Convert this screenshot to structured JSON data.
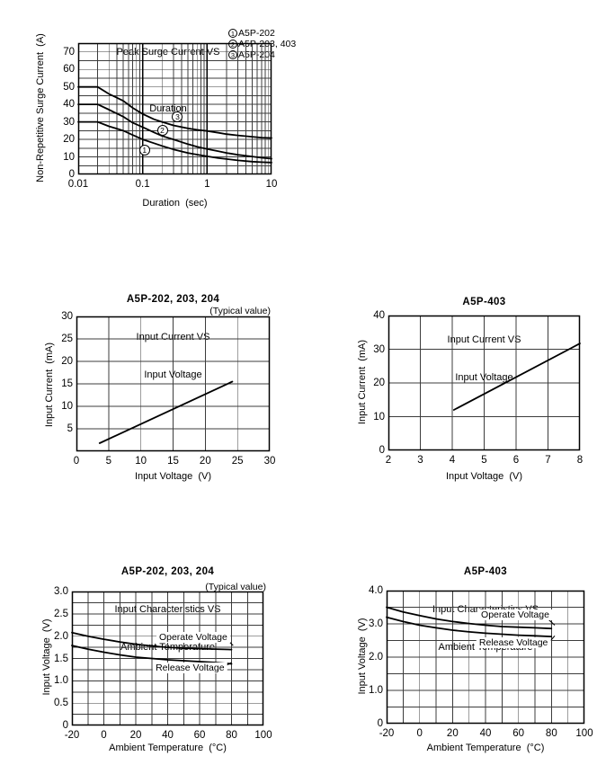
{
  "page": {
    "background": "#ffffff",
    "ink_color": "#000000"
  },
  "chart_data": [
    {
      "id": "peak-surge",
      "type": "line",
      "title": [
        "Peak Surge Current VS",
        "Duration"
      ],
      "legend": [
        {
          "num": "1",
          "label": "A5P-202"
        },
        {
          "num": "2",
          "label": "A5P-203, 403"
        },
        {
          "num": "3",
          "label": "A5P-204"
        }
      ],
      "x_axis": {
        "label": "Duration  (sec)",
        "scale": "log",
        "min": 0.01,
        "max": 10,
        "tick_values": [
          0.01,
          0.1,
          1,
          10
        ],
        "tick_labels": [
          "0.01",
          "0.1",
          "1",
          "10"
        ]
      },
      "y_axis": {
        "label": "Non-Repetitive Surge Current  (A)",
        "min": 0,
        "max": 75,
        "grid_step": 5,
        "tick_values": [
          0,
          10,
          20,
          30,
          40,
          50,
          60,
          70
        ],
        "tick_labels": [
          "0",
          "10",
          "20",
          "30",
          "40",
          "50",
          "60",
          "70"
        ]
      },
      "series": [
        {
          "name": "A5P-204",
          "marker": "3",
          "points": [
            [
              0.01,
              50
            ],
            [
              0.02,
              50
            ],
            [
              0.03,
              46
            ],
            [
              0.05,
              42
            ],
            [
              0.07,
              38
            ],
            [
              0.1,
              34.5
            ],
            [
              0.15,
              31.5
            ],
            [
              0.2,
              30
            ],
            [
              0.3,
              28
            ],
            [
              0.5,
              26.3
            ],
            [
              0.7,
              25.5
            ],
            [
              1,
              24.8
            ],
            [
              1.5,
              23.8
            ],
            [
              2,
              23
            ],
            [
              3,
              22.3
            ],
            [
              5,
              21.5
            ],
            [
              7,
              21
            ],
            [
              10,
              20.8
            ]
          ]
        },
        {
          "name": "A5P-203, 403",
          "marker": "2",
          "points": [
            [
              0.01,
              40
            ],
            [
              0.02,
              40
            ],
            [
              0.03,
              37
            ],
            [
              0.05,
              33
            ],
            [
              0.07,
              29.5
            ],
            [
              0.1,
              27
            ],
            [
              0.15,
              24
            ],
            [
              0.2,
              22
            ],
            [
              0.3,
              20
            ],
            [
              0.5,
              17.3
            ],
            [
              0.7,
              15.8
            ],
            [
              1,
              14.5
            ],
            [
              1.5,
              13.2
            ],
            [
              2,
              12.3
            ],
            [
              3,
              11.2
            ],
            [
              5,
              10.2
            ],
            [
              7,
              9.5
            ],
            [
              10,
              9
            ]
          ]
        },
        {
          "name": "A5P-202",
          "marker": "1",
          "points": [
            [
              0.01,
              30
            ],
            [
              0.02,
              30
            ],
            [
              0.03,
              27.5
            ],
            [
              0.05,
              25
            ],
            [
              0.07,
              22.5
            ],
            [
              0.1,
              20
            ],
            [
              0.15,
              17.8
            ],
            [
              0.2,
              16.3
            ],
            [
              0.3,
              14.3
            ],
            [
              0.5,
              12.3
            ],
            [
              0.7,
              11.3
            ],
            [
              1,
              10.3
            ],
            [
              1.5,
              9.3
            ],
            [
              2,
              8.8
            ],
            [
              3,
              8
            ],
            [
              5,
              7.3
            ],
            [
              7,
              7
            ],
            [
              10,
              6.8
            ]
          ]
        }
      ],
      "point_labels": [
        {
          "circled": "3",
          "x": 0.348,
          "y": 32.9
        },
        {
          "circled": "2",
          "x": 0.202,
          "y": 25.3
        },
        {
          "circled": "1",
          "x": 0.107,
          "y": 13.7
        }
      ]
    },
    {
      "id": "iv-202",
      "type": "line",
      "title": [
        "A5P-202, 203, 204",
        "Input Current VS",
        "Input Voltage"
      ],
      "note": "(Typical value)",
      "x_axis": {
        "label": "Input Voltage  (V)",
        "min": 0,
        "max": 30,
        "grid_step": 5,
        "tick_values": [
          0,
          5,
          10,
          15,
          20,
          25,
          30
        ],
        "tick_labels": [
          "0",
          "5",
          "10",
          "15",
          "20",
          "25",
          "30"
        ]
      },
      "y_axis": {
        "label": "Input Current  (mA)",
        "min": 0,
        "max": 30,
        "grid_step": 5,
        "tick_values": [
          5,
          10,
          15,
          20,
          25,
          30
        ],
        "tick_labels": [
          "5",
          "10",
          "15",
          "20",
          "25",
          "30"
        ]
      },
      "series": [
        {
          "name": "typical input current",
          "points": [
            [
              3.6,
              1.8
            ],
            [
              24.2,
              15.5
            ]
          ]
        }
      ],
      "point_labels": []
    },
    {
      "id": "iv-403",
      "type": "line",
      "title": [
        "A5P-403",
        "Input Current VS",
        "Input Voltage"
      ],
      "x_axis": {
        "label": "Input Voltage  (V)",
        "min": 2,
        "max": 8,
        "grid_step": 1,
        "tick_values": [
          2,
          3,
          4,
          5,
          6,
          7,
          8
        ],
        "tick_labels": [
          "2",
          "3",
          "4",
          "5",
          "6",
          "7",
          "8"
        ]
      },
      "y_axis": {
        "label": "Input Current  (mA)",
        "min": 0,
        "max": 40,
        "grid_step": 10,
        "tick_values": [
          0,
          10,
          20,
          30,
          40
        ],
        "tick_labels": [
          "0",
          "10",
          "20",
          "30",
          "40"
        ]
      },
      "series": [
        {
          "name": "typical input current",
          "points": [
            [
              4.05,
              12
            ],
            [
              8,
              31.7
            ]
          ]
        }
      ],
      "point_labels": []
    },
    {
      "id": "temp-202",
      "type": "line",
      "title": [
        "A5P-202, 203, 204",
        "Input Characteristics VS",
        "Ambient Temperature"
      ],
      "note": "(Typical value)",
      "x_axis": {
        "label": "Ambient Temperature  (°C)",
        "min": -20,
        "max": 100,
        "grid_step": 10,
        "tick_values": [
          -20,
          0,
          20,
          40,
          60,
          80,
          100
        ],
        "tick_labels": [
          "-20",
          "0",
          "20",
          "40",
          "60",
          "80",
          "100"
        ]
      },
      "y_axis": {
        "label": "Input Voltage  (V)",
        "min": 0,
        "max": 3,
        "grid_step": 0.25,
        "tick_values": [
          0,
          0.5,
          1,
          1.5,
          2,
          2.5,
          3
        ],
        "tick_labels": [
          "0",
          "0.5",
          "1.0",
          "1.5",
          "2.0",
          "2.5",
          "3.0"
        ]
      },
      "series": [
        {
          "name": "Operate Voltage",
          "points": [
            [
              -20,
              2.08
            ],
            [
              -10,
              2.0
            ],
            [
              0,
              1.93
            ],
            [
              10,
              1.87
            ],
            [
              20,
              1.82
            ],
            [
              30,
              1.78
            ],
            [
              40,
              1.75
            ],
            [
              50,
              1.73
            ],
            [
              60,
              1.72
            ],
            [
              70,
              1.71
            ],
            [
              80,
              1.7
            ]
          ],
          "leader": [
            [
              77,
              1.93
            ],
            [
              81,
              1.79
            ]
          ]
        },
        {
          "name": "Release Voltage",
          "points": [
            [
              -20,
              1.79
            ],
            [
              -10,
              1.71
            ],
            [
              0,
              1.64
            ],
            [
              10,
              1.58
            ],
            [
              20,
              1.53
            ],
            [
              30,
              1.5
            ],
            [
              40,
              1.47
            ],
            [
              50,
              1.45
            ],
            [
              60,
              1.43
            ],
            [
              70,
              1.41
            ],
            [
              80,
              1.38
            ]
          ],
          "leader": [
            [
              76,
              1.33
            ],
            [
              80,
              1.41
            ]
          ]
        }
      ],
      "point_labels": [
        {
          "text": "Operate Voltage",
          "x": 56,
          "y": 1.97
        },
        {
          "text": "Release Voltage",
          "x": 54,
          "y": 1.29
        }
      ]
    },
    {
      "id": "temp-403",
      "type": "line",
      "title": [
        "A5P-403",
        "Input Characteristics VS",
        "Ambient Temperature"
      ],
      "x_axis": {
        "label": "Ambient Temperature  (°C)",
        "min": -20,
        "max": 100,
        "grid_step": 10,
        "tick_values": [
          -20,
          0,
          20,
          40,
          60,
          80,
          100
        ],
        "tick_labels": [
          "-20",
          "0",
          "20",
          "40",
          "60",
          "80",
          "100"
        ]
      },
      "y_axis": {
        "label": "Input Voltage  (V)",
        "min": 0,
        "max": 4,
        "grid_step": 0.5,
        "tick_values": [
          0,
          1,
          2,
          3,
          4
        ],
        "tick_labels": [
          "0",
          "1.0",
          "2.0",
          "3.0",
          "4.0"
        ]
      },
      "series": [
        {
          "name": "Operate Voltage",
          "points": [
            [
              -20,
              3.5
            ],
            [
              -10,
              3.36
            ],
            [
              0,
              3.25
            ],
            [
              10,
              3.15
            ],
            [
              20,
              3.07
            ],
            [
              30,
              3.01
            ],
            [
              40,
              2.96
            ],
            [
              50,
              2.92
            ],
            [
              60,
              2.9
            ],
            [
              70,
              2.88
            ],
            [
              80,
              2.86
            ]
          ],
          "leader": [
            [
              78,
              3.14
            ],
            [
              82,
              2.96
            ]
          ]
        },
        {
          "name": "Release Voltage",
          "points": [
            [
              -20,
              3.2
            ],
            [
              -10,
              3.07
            ],
            [
              0,
              2.96
            ],
            [
              10,
              2.88
            ],
            [
              20,
              2.81
            ],
            [
              30,
              2.76
            ],
            [
              40,
              2.72
            ],
            [
              50,
              2.69
            ],
            [
              60,
              2.66
            ],
            [
              70,
              2.64
            ],
            [
              80,
              2.62
            ]
          ],
          "leader": [
            [
              79,
              2.47
            ],
            [
              82,
              2.64
            ]
          ]
        }
      ],
      "point_labels": [
        {
          "text": "Operate Voltage",
          "x": 58,
          "y": 3.27
        },
        {
          "text": "Release Voltage",
          "x": 57,
          "y": 2.43
        }
      ]
    }
  ]
}
